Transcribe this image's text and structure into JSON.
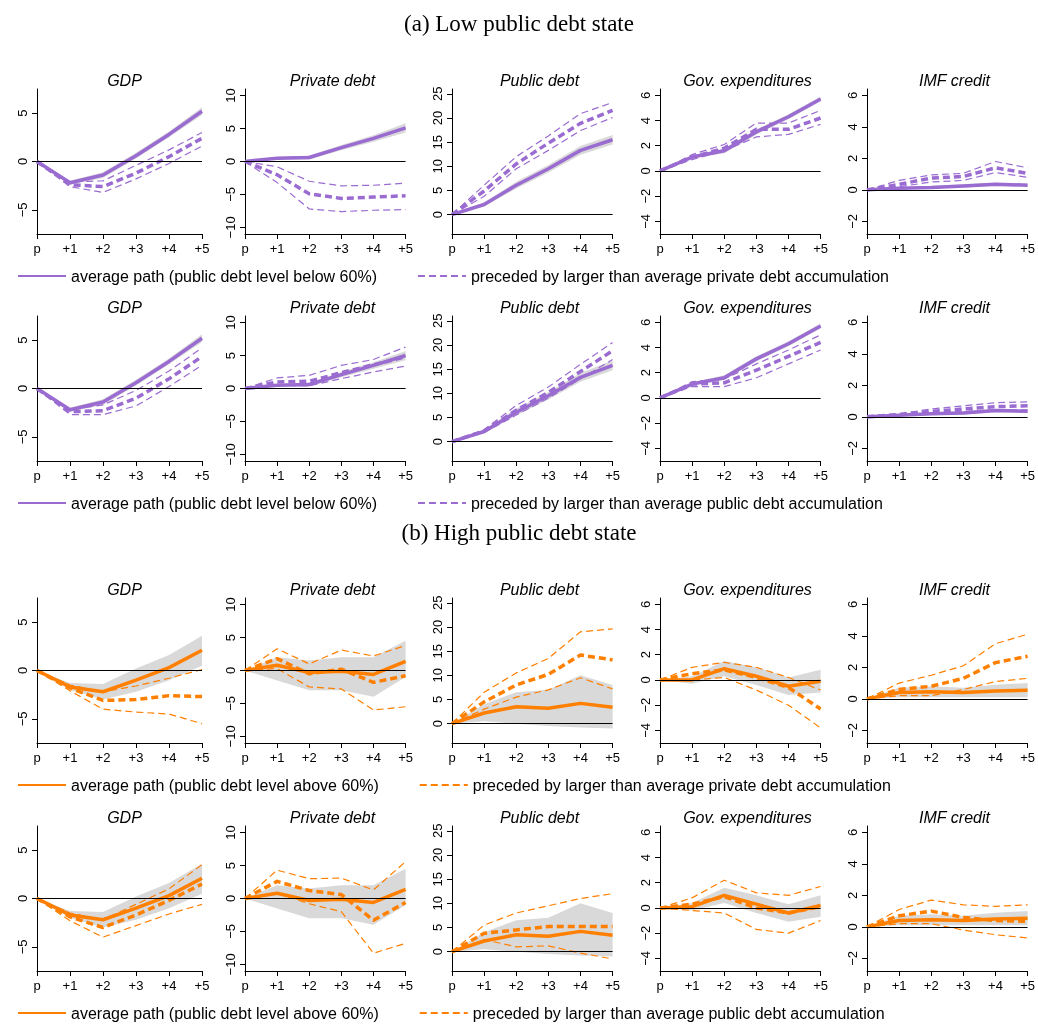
{
  "chart_data": [
    {
      "type": "line",
      "title": "GDP",
      "annotations": [
        "(a) Low public debt state"
      ],
      "legend": "bottom",
      "marker": "none",
      "grid": false,
      "categories": [
        "p",
        "+1",
        "+2",
        "+3",
        "+4",
        "+5"
      ],
      "ylim": [
        -7.5,
        7.5
      ],
      "yticks": [
        -5,
        0,
        5
      ],
      "ref_lines": [
        {
          "axis": "y",
          "value": 0,
          "color": "#000000"
        }
      ],
      "series": [
        {
          "name": "average path (public debt level below 60%)",
          "color": "#9a6bd0",
          "line_style": "solid",
          "values": [
            0,
            -2.2,
            -1.4,
            0.6,
            2.8,
            5.2
          ],
          "lower": [
            0,
            -2.4,
            -1.7,
            0.3,
            2.5,
            4.8
          ],
          "upper": [
            0,
            -2.0,
            -1.1,
            0.9,
            3.1,
            5.6
          ]
        },
        {
          "name": "preceded by larger than average private debt accumulation",
          "color": "#9a6bd0",
          "line_style": "dashed",
          "values": [
            0,
            -2.4,
            -2.6,
            -1.2,
            0.5,
            2.4
          ]
        },
        {
          "color": "#9a6bd0",
          "line_style": "dashed",
          "values": [
            0,
            -2.1,
            -2.0,
            -0.4,
            1.2,
            3.0
          ]
        },
        {
          "color": "#9a6bd0",
          "line_style": "dashed",
          "values": [
            0,
            -2.6,
            -3.2,
            -1.8,
            -0.2,
            1.6
          ]
        }
      ]
    },
    {
      "type": "line",
      "title": "Private debt",
      "marker": "none",
      "grid": false,
      "categories": [
        "p",
        "+1",
        "+2",
        "+3",
        "+4",
        "+5"
      ],
      "ylim": [
        -11,
        11
      ],
      "yticks": [
        -10,
        -5,
        0,
        5,
        10
      ],
      "ref_lines": [
        {
          "axis": "y",
          "value": 0,
          "color": "#000000"
        }
      ],
      "series": [
        {
          "color": "#9a6bd0",
          "line_style": "solid",
          "values": [
            0,
            0.5,
            0.6,
            2.1,
            3.5,
            5.1
          ],
          "lower": [
            0,
            0.3,
            0.3,
            1.7,
            3.0,
            4.4
          ],
          "upper": [
            0,
            0.7,
            0.9,
            2.5,
            4.0,
            5.8
          ]
        },
        {
          "color": "#9a6bd0",
          "line_style": "dashed",
          "values": [
            0,
            -2,
            -4.9,
            -5.6,
            -5.4,
            -5.2
          ]
        },
        {
          "color": "#9a6bd0",
          "line_style": "dashed",
          "values": [
            0,
            -0.8,
            -3,
            -3.7,
            -3.6,
            -3.3
          ]
        },
        {
          "color": "#9a6bd0",
          "line_style": "dashed",
          "values": [
            0,
            -3.2,
            -7.2,
            -7.6,
            -7.4,
            -7.3
          ]
        }
      ]
    },
    {
      "type": "line",
      "title": "Public debt",
      "marker": "none",
      "grid": false,
      "categories": [
        "p",
        "+1",
        "+2",
        "+3",
        "+4",
        "+5"
      ],
      "ylim": [
        -4,
        26
      ],
      "yticks": [
        0,
        5,
        10,
        15,
        20,
        25
      ],
      "ref_lines": [
        {
          "axis": "y",
          "value": 0,
          "color": "#000000"
        }
      ],
      "series": [
        {
          "color": "#9a6bd0",
          "line_style": "solid",
          "values": [
            0,
            2.1,
            6.1,
            9.5,
            13.3,
            15.5
          ],
          "lower": [
            0,
            1.7,
            5.4,
            8.7,
            12.4,
            14.5
          ],
          "upper": [
            0,
            2.5,
            6.8,
            10.3,
            14.2,
            16.5
          ]
        },
        {
          "color": "#9a6bd0",
          "line_style": "dashed",
          "values": [
            0,
            4.9,
            10.5,
            14.8,
            18.9,
            21.6
          ]
        },
        {
          "color": "#9a6bd0",
          "line_style": "dashed",
          "values": [
            0,
            6.1,
            12,
            16.3,
            20.9,
            23.2
          ]
        },
        {
          "color": "#9a6bd0",
          "line_style": "dashed",
          "values": [
            0,
            3.8,
            9.5,
            13.3,
            17.4,
            20.1
          ]
        }
      ]
    },
    {
      "type": "line",
      "title": "Gov. expenditures",
      "marker": "none",
      "grid": false,
      "categories": [
        "p",
        "+1",
        "+2",
        "+3",
        "+4",
        "+5"
      ],
      "ylim": [
        -5,
        6.5
      ],
      "yticks": [
        -4,
        -2,
        0,
        2,
        4,
        6
      ],
      "ref_lines": [
        {
          "axis": "y",
          "value": 0,
          "color": "#000000"
        }
      ],
      "series": [
        {
          "color": "#9a6bd0",
          "line_style": "solid",
          "values": [
            0,
            1.1,
            1.6,
            3.1,
            4.3,
            5.7
          ],
          "lower": [
            0,
            1.0,
            1.4,
            2.9,
            4.1,
            5.5
          ],
          "upper": [
            0,
            1.2,
            1.8,
            3.3,
            4.5,
            5.9
          ]
        },
        {
          "color": "#9a6bd0",
          "line_style": "dashed",
          "values": [
            0,
            1.1,
            1.8,
            3.3,
            3.3,
            4.2
          ]
        },
        {
          "color": "#9a6bd0",
          "line_style": "dashed",
          "values": [
            0,
            1.3,
            2.1,
            3.8,
            3.8,
            4.8
          ]
        },
        {
          "color": "#9a6bd0",
          "line_style": "dashed",
          "values": [
            0,
            0.9,
            1.6,
            2.7,
            2.9,
            3.7
          ]
        }
      ]
    },
    {
      "type": "line",
      "title": "IMF credit",
      "marker": "none",
      "grid": false,
      "categories": [
        "p",
        "+1",
        "+2",
        "+3",
        "+4",
        "+5"
      ],
      "ylim": [
        -2.8,
        6.4
      ],
      "yticks": [
        -2,
        0,
        2,
        4,
        6
      ],
      "ref_lines": [
        {
          "axis": "y",
          "value": 0,
          "color": "#000000"
        }
      ],
      "series": [
        {
          "color": "#9a6bd0",
          "line_style": "solid",
          "values": [
            0,
            0.1,
            0.15,
            0.25,
            0.35,
            0.3
          ],
          "lower": [
            0,
            0.05,
            0.05,
            0.15,
            0.25,
            0.2
          ],
          "upper": [
            0,
            0.15,
            0.25,
            0.35,
            0.45,
            0.4
          ]
        },
        {
          "color": "#9a6bd0",
          "line_style": "dashed",
          "values": [
            0,
            0.35,
            0.75,
            0.85,
            1.4,
            1.05
          ]
        },
        {
          "color": "#9a6bd0",
          "line_style": "dashed",
          "values": [
            0,
            0.6,
            0.95,
            1.05,
            1.8,
            1.4
          ]
        },
        {
          "color": "#9a6bd0",
          "line_style": "dashed",
          "values": [
            0,
            0.2,
            0.5,
            0.6,
            1.1,
            0.8
          ]
        }
      ]
    },
    {
      "type": "line",
      "title": "GDP",
      "legend": "bottom",
      "marker": "none",
      "grid": false,
      "categories": [
        "p",
        "+1",
        "+2",
        "+3",
        "+4",
        "+5"
      ],
      "ylim": [
        -7.5,
        7.5
      ],
      "yticks": [
        -5,
        0,
        5
      ],
      "ref_lines": [
        {
          "axis": "y",
          "value": 0,
          "color": "#000000"
        }
      ],
      "series": [
        {
          "name": "average path (public debt level below 60%)",
          "color": "#9a6bd0",
          "line_style": "solid",
          "values": [
            0,
            -2.2,
            -1.4,
            0.6,
            2.8,
            5.2
          ],
          "lower": [
            0,
            -2.4,
            -1.7,
            0.3,
            2.5,
            4.8
          ],
          "upper": [
            0,
            -2.0,
            -1.1,
            0.9,
            3.1,
            5.6
          ]
        },
        {
          "name": "preceded by larger than average public debt accumulation",
          "color": "#9a6bd0",
          "line_style": "dashed",
          "values": [
            0,
            -2.4,
            -2.3,
            -1.0,
            1.0,
            3.3
          ]
        },
        {
          "color": "#9a6bd0",
          "line_style": "dashed",
          "values": [
            0,
            -2.2,
            -1.7,
            -0.2,
            1.8,
            4.2
          ]
        },
        {
          "color": "#9a6bd0",
          "line_style": "dashed",
          "values": [
            0,
            -2.7,
            -2.7,
            -1.8,
            0.2,
            2.4
          ]
        }
      ]
    },
    {
      "type": "line",
      "title": "Private debt",
      "marker": "none",
      "grid": false,
      "categories": [
        "p",
        "+1",
        "+2",
        "+3",
        "+4",
        "+5"
      ],
      "ylim": [
        -11,
        11
      ],
      "yticks": [
        -10,
        -5,
        0,
        5,
        10
      ],
      "ref_lines": [
        {
          "axis": "y",
          "value": 0,
          "color": "#000000"
        }
      ],
      "series": [
        {
          "color": "#9a6bd0",
          "line_style": "solid",
          "values": [
            0,
            0.5,
            0.6,
            2.1,
            3.5,
            5.0
          ],
          "lower": [
            0,
            0.3,
            0.3,
            1.7,
            3.0,
            4.3
          ],
          "upper": [
            0,
            0.7,
            0.9,
            2.5,
            4.0,
            5.7
          ]
        },
        {
          "color": "#9a6bd0",
          "line_style": "dashed",
          "values": [
            0,
            1.0,
            1.1,
            2.4,
            3.6,
            4.8
          ]
        },
        {
          "color": "#9a6bd0",
          "line_style": "dashed",
          "values": [
            0,
            1.6,
            2.0,
            3.5,
            4.4,
            6.3
          ]
        },
        {
          "color": "#9a6bd0",
          "line_style": "dashed",
          "values": [
            0,
            0.5,
            0.4,
            1.5,
            2.5,
            3.4
          ]
        }
      ]
    },
    {
      "type": "line",
      "title": "Public debt",
      "marker": "none",
      "grid": false,
      "categories": [
        "p",
        "+1",
        "+2",
        "+3",
        "+4",
        "+5"
      ],
      "ylim": [
        -4,
        26
      ],
      "yticks": [
        0,
        5,
        10,
        15,
        20,
        25
      ],
      "ref_lines": [
        {
          "axis": "y",
          "value": 0,
          "color": "#000000"
        }
      ],
      "series": [
        {
          "color": "#9a6bd0",
          "line_style": "solid",
          "values": [
            0,
            2.1,
            6.1,
            9.5,
            13.3,
            15.8
          ],
          "lower": [
            0,
            1.7,
            5.4,
            8.7,
            12.4,
            14.8
          ],
          "upper": [
            0,
            2.5,
            6.8,
            10.3,
            14.2,
            16.8
          ]
        },
        {
          "color": "#9a6bd0",
          "line_style": "dashed",
          "values": [
            0,
            2.2,
            6.5,
            10.2,
            14.5,
            18.8
          ]
        },
        {
          "color": "#9a6bd0",
          "line_style": "dashed",
          "values": [
            0,
            2.5,
            7.5,
            11.3,
            16,
            20.5
          ]
        },
        {
          "color": "#9a6bd0",
          "line_style": "dashed",
          "values": [
            0,
            1.9,
            5.5,
            9,
            13,
            17
          ]
        }
      ]
    },
    {
      "type": "line",
      "title": "Gov. expenditures",
      "marker": "none",
      "grid": false,
      "categories": [
        "p",
        "+1",
        "+2",
        "+3",
        "+4",
        "+5"
      ],
      "ylim": [
        -5,
        6.5
      ],
      "yticks": [
        -4,
        -2,
        0,
        2,
        4,
        6
      ],
      "ref_lines": [
        {
          "axis": "y",
          "value": 0,
          "color": "#000000"
        }
      ],
      "series": [
        {
          "color": "#9a6bd0",
          "line_style": "solid",
          "values": [
            0,
            1.1,
            1.6,
            3.1,
            4.3,
            5.7
          ],
          "lower": [
            0,
            1.0,
            1.4,
            2.9,
            4.1,
            5.5
          ],
          "upper": [
            0,
            1.2,
            1.8,
            3.3,
            4.5,
            5.9
          ]
        },
        {
          "color": "#9a6bd0",
          "line_style": "dashed",
          "values": [
            0,
            1.1,
            1.2,
            2.2,
            3.3,
            4.4
          ]
        },
        {
          "color": "#9a6bd0",
          "line_style": "dashed",
          "values": [
            0,
            1.3,
            1.5,
            2.7,
            3.8,
            5.0
          ]
        },
        {
          "color": "#9a6bd0",
          "line_style": "dashed",
          "values": [
            0,
            0.9,
            0.9,
            1.6,
            2.7,
            3.8
          ]
        }
      ]
    },
    {
      "type": "line",
      "title": "IMF credit",
      "marker": "none",
      "grid": false,
      "categories": [
        "p",
        "+1",
        "+2",
        "+3",
        "+4",
        "+5"
      ],
      "ylim": [
        -2.8,
        6.4
      ],
      "yticks": [
        -2,
        0,
        2,
        4,
        6
      ],
      "ref_lines": [
        {
          "axis": "y",
          "value": 0,
          "color": "#000000"
        }
      ],
      "series": [
        {
          "color": "#9a6bd0",
          "line_style": "solid",
          "values": [
            0,
            0.1,
            0.2,
            0.25,
            0.4,
            0.35
          ],
          "lower": [
            0,
            0.05,
            0.1,
            0.15,
            0.3,
            0.25
          ],
          "upper": [
            0,
            0.15,
            0.3,
            0.35,
            0.5,
            0.45
          ]
        },
        {
          "color": "#9a6bd0",
          "line_style": "dashed",
          "values": [
            0,
            0.15,
            0.35,
            0.5,
            0.65,
            0.7
          ]
        },
        {
          "color": "#9a6bd0",
          "line_style": "dashed",
          "values": [
            0,
            0.2,
            0.5,
            0.7,
            0.9,
            0.95
          ]
        },
        {
          "color": "#9a6bd0",
          "line_style": "dashed",
          "values": [
            0,
            0.1,
            0.25,
            0.35,
            0.45,
            0.45
          ]
        }
      ]
    },
    {
      "type": "line",
      "title": "GDP",
      "annotations": [
        "(b) High public debt state"
      ],
      "legend": "bottom",
      "marker": "none",
      "grid": false,
      "categories": [
        "p",
        "+1",
        "+2",
        "+3",
        "+4",
        "+5"
      ],
      "ylim": [
        -7.5,
        7.5
      ],
      "yticks": [
        -5,
        0,
        5
      ],
      "ref_lines": [
        {
          "axis": "y",
          "value": 0,
          "color": "#000000"
        }
      ],
      "series": [
        {
          "name": "average path (public debt level above 60%)",
          "color": "#ff7f00",
          "line_style": "solid",
          "values": [
            0,
            -1.7,
            -2.2,
            -1.0,
            0.3,
            2.1
          ],
          "lower": [
            0,
            -2.0,
            -3.0,
            -2.2,
            -1.0,
            0.5
          ],
          "upper": [
            0,
            -1.3,
            -1.4,
            0.2,
            1.6,
            3.6
          ]
        },
        {
          "name": "preceded by larger than average private debt accumulation",
          "color": "#ff7f00",
          "line_style": "dashed",
          "values": [
            0,
            -1.8,
            -3.1,
            -3.0,
            -2.6,
            -2.7
          ]
        },
        {
          "color": "#ff7f00",
          "line_style": "dashed",
          "values": [
            0,
            -1.5,
            -2.2,
            -1.6,
            -0.8,
            0.1
          ]
        },
        {
          "color": "#ff7f00",
          "line_style": "dashed",
          "values": [
            0,
            -2.1,
            -4.0,
            -4.3,
            -4.5,
            -5.5
          ]
        }
      ]
    },
    {
      "type": "line",
      "title": "Private debt",
      "marker": "none",
      "grid": false,
      "categories": [
        "p",
        "+1",
        "+2",
        "+3",
        "+4",
        "+5"
      ],
      "ylim": [
        -11,
        11
      ],
      "yticks": [
        -10,
        -5,
        0,
        5,
        10
      ],
      "ref_lines": [
        {
          "axis": "y",
          "value": 0,
          "color": "#000000"
        }
      ],
      "series": [
        {
          "color": "#ff7f00",
          "line_style": "solid",
          "values": [
            0,
            0.8,
            -0.3,
            -0.1,
            -0.6,
            1.4
          ],
          "lower": [
            0,
            -1.5,
            -3,
            -3,
            -4,
            -1
          ],
          "upper": [
            0,
            2,
            1.5,
            2,
            2,
            4.5
          ]
        },
        {
          "color": "#ff7f00",
          "line_style": "dashed",
          "values": [
            0,
            1.8,
            -0.5,
            0.2,
            -1.8,
            -0.8
          ]
        },
        {
          "color": "#ff7f00",
          "line_style": "dashed",
          "values": [
            0,
            3.3,
            1.0,
            3.1,
            2.2,
            3.8
          ]
        },
        {
          "color": "#ff7f00",
          "line_style": "dashed",
          "values": [
            0,
            0.3,
            -2.5,
            -2.8,
            -6,
            -5.5
          ]
        }
      ]
    },
    {
      "type": "line",
      "title": "Public debt",
      "marker": "none",
      "grid": false,
      "categories": [
        "p",
        "+1",
        "+2",
        "+3",
        "+4",
        "+5"
      ],
      "ylim": [
        -4,
        26
      ],
      "yticks": [
        0,
        5,
        10,
        15,
        20,
        25
      ],
      "ref_lines": [
        {
          "axis": "y",
          "value": 0,
          "color": "#000000"
        }
      ],
      "series": [
        {
          "color": "#ff7f00",
          "line_style": "solid",
          "values": [
            0,
            2.2,
            3.5,
            3.2,
            4.2,
            3.4
          ],
          "lower": [
            0,
            0.5,
            0,
            -0.5,
            -0.8,
            -1
          ],
          "upper": [
            0,
            4,
            6.5,
            7,
            10,
            8
          ]
        },
        {
          "color": "#ff7f00",
          "line_style": "dashed",
          "values": [
            0,
            4.5,
            8,
            10.2,
            14.2,
            13.2
          ]
        },
        {
          "color": "#ff7f00",
          "line_style": "dashed",
          "values": [
            0,
            6.5,
            10.5,
            13.5,
            19,
            19.6
          ]
        },
        {
          "color": "#ff7f00",
          "line_style": "dashed",
          "values": [
            0,
            3,
            5.5,
            7,
            9.5,
            7.2
          ]
        }
      ]
    },
    {
      "type": "line",
      "title": "Gov. expenditures",
      "marker": "none",
      "grid": false,
      "categories": [
        "p",
        "+1",
        "+2",
        "+3",
        "+4",
        "+5"
      ],
      "ylim": [
        -5,
        6.5
      ],
      "yticks": [
        -4,
        -2,
        0,
        2,
        4,
        6
      ],
      "ref_lines": [
        {
          "axis": "y",
          "value": 0,
          "color": "#000000"
        }
      ],
      "series": [
        {
          "color": "#ff7f00",
          "line_style": "solid",
          "values": [
            0,
            0,
            0.9,
            0.3,
            -0.5,
            -0.1
          ],
          "lower": [
            0,
            -0.3,
            0.3,
            -0.4,
            -1.2,
            -1.0
          ],
          "upper": [
            0,
            0.3,
            1.5,
            1.0,
            0.2,
            0.8
          ]
        },
        {
          "color": "#ff7f00",
          "line_style": "dashed",
          "values": [
            0,
            0.5,
            0.8,
            0.2,
            -0.6,
            -2.3
          ]
        },
        {
          "color": "#ff7f00",
          "line_style": "dashed",
          "values": [
            0,
            1.0,
            1.4,
            1.0,
            0.2,
            -0.8
          ]
        },
        {
          "color": "#ff7f00",
          "line_style": "dashed",
          "values": [
            0,
            0,
            0.2,
            -0.8,
            -2,
            -3.8
          ]
        }
      ]
    },
    {
      "type": "line",
      "title": "IMF credit",
      "marker": "none",
      "grid": false,
      "categories": [
        "p",
        "+1",
        "+2",
        "+3",
        "+4",
        "+5"
      ],
      "ylim": [
        -2.8,
        6.4
      ],
      "yticks": [
        -2,
        0,
        2,
        4,
        6
      ],
      "ref_lines": [
        {
          "axis": "y",
          "value": 0,
          "color": "#000000"
        }
      ],
      "series": [
        {
          "color": "#ff7f00",
          "line_style": "solid",
          "values": [
            0,
            0.4,
            0.45,
            0.4,
            0.5,
            0.55
          ],
          "lower": [
            0,
            0.1,
            0.1,
            0.1,
            0.1,
            0.1
          ],
          "upper": [
            0,
            0.7,
            0.8,
            0.7,
            0.9,
            1.0
          ]
        },
        {
          "color": "#ff7f00",
          "line_style": "dashed",
          "values": [
            0,
            0.6,
            0.8,
            1.3,
            2.3,
            2.7
          ]
        },
        {
          "color": "#ff7f00",
          "line_style": "dashed",
          "values": [
            0,
            1.0,
            1.5,
            2.1,
            3.5,
            4.1
          ]
        },
        {
          "color": "#ff7f00",
          "line_style": "dashed",
          "values": [
            0,
            0.2,
            0.2,
            0.6,
            1.1,
            1.3
          ]
        }
      ]
    },
    {
      "type": "line",
      "title": "GDP",
      "legend": "bottom",
      "marker": "none",
      "grid": false,
      "categories": [
        "p",
        "+1",
        "+2",
        "+3",
        "+4",
        "+5"
      ],
      "ylim": [
        -7.5,
        7.5
      ],
      "yticks": [
        -5,
        0,
        5
      ],
      "ref_lines": [
        {
          "axis": "y",
          "value": 0,
          "color": "#000000"
        }
      ],
      "series": [
        {
          "name": "average path (public debt level above 60%)",
          "color": "#ff7f00",
          "line_style": "solid",
          "values": [
            0,
            -1.7,
            -2.2,
            -1.0,
            0.3,
            2.1
          ],
          "lower": [
            0,
            -2.0,
            -3.0,
            -2.2,
            -1.0,
            0.5
          ],
          "upper": [
            0,
            -1.3,
            -1.4,
            0.2,
            1.6,
            3.6
          ]
        },
        {
          "name": "preceded by larger than average public debt accumulation",
          "color": "#ff7f00",
          "line_style": "dashed",
          "values": [
            0,
            -1.9,
            -3.0,
            -1.7,
            -0.2,
            1.5
          ]
        },
        {
          "color": "#ff7f00",
          "line_style": "dashed",
          "values": [
            0,
            -1.5,
            -2.2,
            -0.6,
            1.0,
            3.5
          ]
        },
        {
          "color": "#ff7f00",
          "line_style": "dashed",
          "values": [
            0,
            -2.3,
            -4.0,
            -2.8,
            -1.6,
            -0.6
          ]
        }
      ]
    },
    {
      "type": "line",
      "title": "Private debt",
      "marker": "none",
      "grid": false,
      "categories": [
        "p",
        "+1",
        "+2",
        "+3",
        "+4",
        "+5"
      ],
      "ylim": [
        -11,
        11
      ],
      "yticks": [
        -10,
        -5,
        0,
        5,
        10
      ],
      "ref_lines": [
        {
          "axis": "y",
          "value": 0,
          "color": "#000000"
        }
      ],
      "series": [
        {
          "color": "#ff7f00",
          "line_style": "solid",
          "values": [
            0,
            0.8,
            -0.3,
            -0.1,
            -0.6,
            1.4
          ],
          "lower": [
            0,
            -1.5,
            -3,
            -3,
            -4,
            -1
          ],
          "upper": [
            0,
            2,
            1.5,
            2,
            2,
            4.5
          ]
        },
        {
          "color": "#ff7f00",
          "line_style": "dashed",
          "values": [
            0,
            2.6,
            1.2,
            0.6,
            -3.3,
            -0.6
          ]
        },
        {
          "color": "#ff7f00",
          "line_style": "dashed",
          "values": [
            0,
            4.3,
            3.0,
            3.1,
            1.3,
            5.6
          ]
        },
        {
          "color": "#ff7f00",
          "line_style": "dashed",
          "values": [
            0,
            0.8,
            -0.8,
            -2.0,
            -8.3,
            -6.8
          ]
        }
      ]
    },
    {
      "type": "line",
      "title": "Public debt",
      "marker": "none",
      "grid": false,
      "categories": [
        "p",
        "+1",
        "+2",
        "+3",
        "+4",
        "+5"
      ],
      "ylim": [
        -4,
        26
      ],
      "yticks": [
        0,
        5,
        10,
        15,
        20,
        25
      ],
      "ref_lines": [
        {
          "axis": "y",
          "value": 0,
          "color": "#000000"
        }
      ],
      "series": [
        {
          "color": "#ff7f00",
          "line_style": "solid",
          "values": [
            0,
            2.2,
            3.5,
            3.2,
            4.2,
            3.4
          ],
          "lower": [
            0,
            0.5,
            0,
            -0.5,
            -0.8,
            -1
          ],
          "upper": [
            0,
            4,
            6.5,
            7,
            10,
            8
          ]
        },
        {
          "color": "#ff7f00",
          "line_style": "dashed",
          "values": [
            0,
            3.8,
            4.5,
            5.2,
            5.2,
            5.2
          ]
        },
        {
          "color": "#ff7f00",
          "line_style": "dashed",
          "values": [
            0,
            5.5,
            8,
            9.5,
            11,
            12
          ]
        },
        {
          "color": "#ff7f00",
          "line_style": "dashed",
          "values": [
            0,
            2.5,
            1,
            1.2,
            -0.3,
            -1.5
          ]
        }
      ]
    },
    {
      "type": "line",
      "title": "Gov. expenditures",
      "marker": "none",
      "grid": false,
      "categories": [
        "p",
        "+1",
        "+2",
        "+3",
        "+4",
        "+5"
      ],
      "ylim": [
        -5,
        6.5
      ],
      "yticks": [
        -4,
        -2,
        0,
        2,
        4,
        6
      ],
      "ref_lines": [
        {
          "axis": "y",
          "value": 0,
          "color": "#000000"
        }
      ],
      "series": [
        {
          "color": "#ff7f00",
          "line_style": "solid",
          "values": [
            0,
            0.1,
            1.0,
            0.3,
            -0.4,
            0.2
          ],
          "lower": [
            0,
            -0.2,
            0.4,
            -0.4,
            -1.1,
            -0.7
          ],
          "upper": [
            0,
            0.4,
            1.6,
            1.0,
            0.3,
            1.0
          ]
        },
        {
          "color": "#ff7f00",
          "line_style": "dashed",
          "values": [
            0,
            0.3,
            0.9,
            0.0,
            -0.4,
            0.1
          ]
        },
        {
          "color": "#ff7f00",
          "line_style": "dashed",
          "values": [
            0,
            0.8,
            2.2,
            1.2,
            1.0,
            1.7
          ]
        },
        {
          "color": "#ff7f00",
          "line_style": "dashed",
          "values": [
            0,
            -0.2,
            -0.4,
            -1.7,
            -2,
            -1.0
          ]
        }
      ]
    },
    {
      "type": "line",
      "title": "IMF credit",
      "marker": "none",
      "grid": false,
      "categories": [
        "p",
        "+1",
        "+2",
        "+3",
        "+4",
        "+5"
      ],
      "ylim": [
        -2.8,
        6.4
      ],
      "yticks": [
        -2,
        0,
        2,
        4,
        6
      ],
      "ref_lines": [
        {
          "axis": "y",
          "value": 0,
          "color": "#000000"
        }
      ],
      "series": [
        {
          "color": "#ff7f00",
          "line_style": "solid",
          "values": [
            0,
            0.4,
            0.45,
            0.4,
            0.5,
            0.55
          ],
          "lower": [
            0,
            0.1,
            0.1,
            0.1,
            0.1,
            0.1
          ],
          "upper": [
            0,
            0.7,
            0.8,
            0.7,
            0.9,
            1.0
          ]
        },
        {
          "color": "#ff7f00",
          "line_style": "dashed",
          "values": [
            0,
            0.7,
            1.0,
            0.6,
            0.4,
            0.35
          ]
        },
        {
          "color": "#ff7f00",
          "line_style": "dashed",
          "values": [
            0,
            1.1,
            1.7,
            1.4,
            1.3,
            1.4
          ]
        },
        {
          "color": "#ff7f00",
          "line_style": "dashed",
          "values": [
            0,
            0.2,
            0.2,
            -0.2,
            -0.5,
            -0.7
          ]
        }
      ]
    }
  ]
}
